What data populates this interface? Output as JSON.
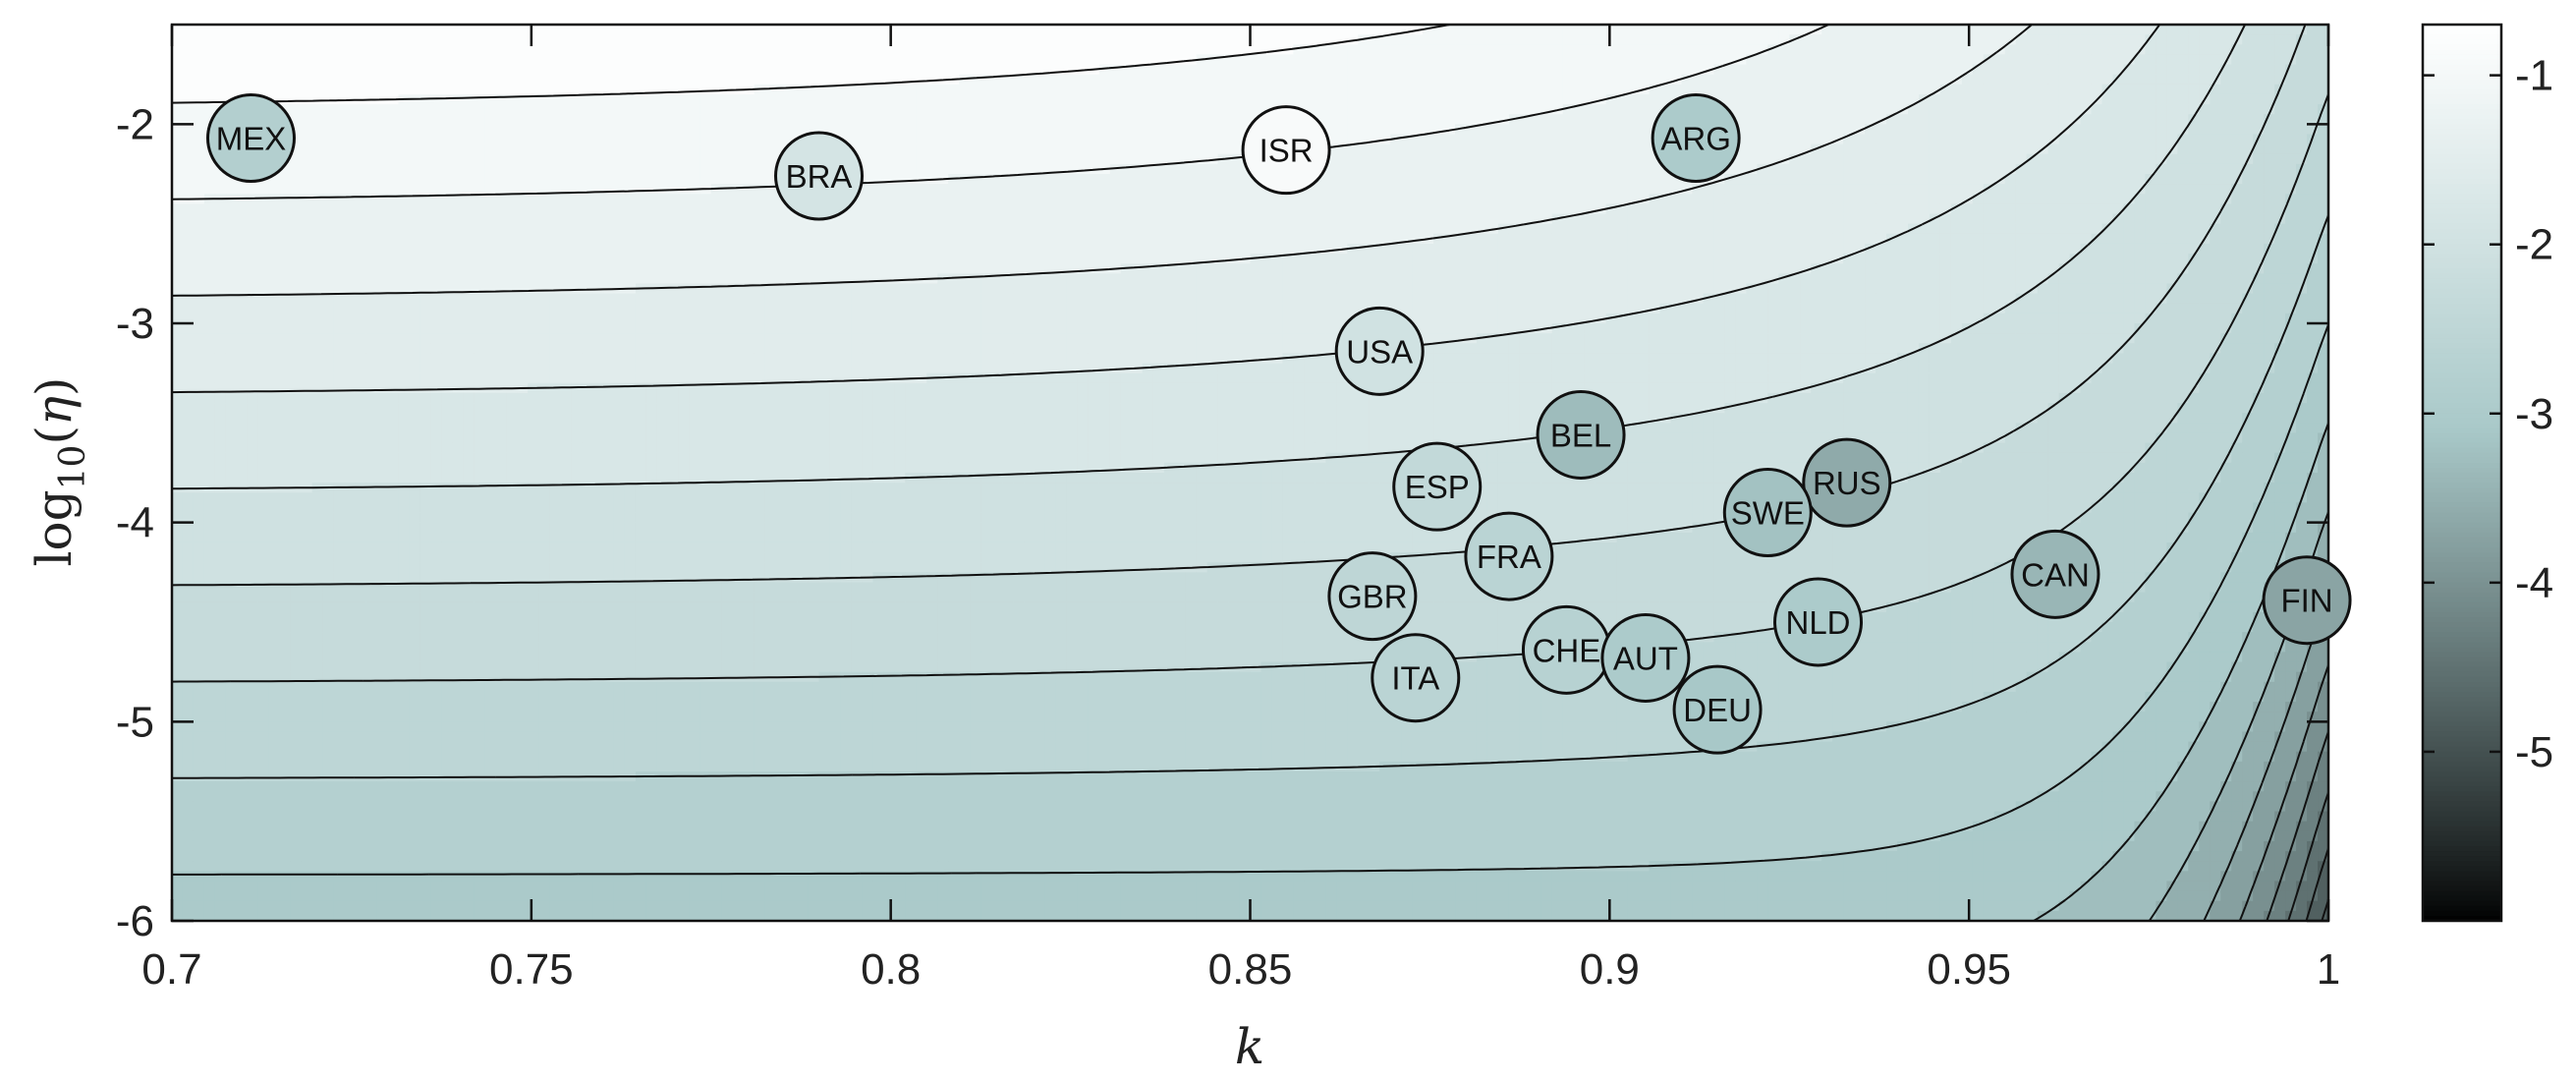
{
  "chart_data": {
    "type": "contour",
    "xlabel": "k",
    "ylabel_parts": [
      "log",
      "10",
      "(",
      "η",
      ")"
    ],
    "xlim": [
      0.7,
      1.0
    ],
    "ylim": [
      -6,
      -1.5
    ],
    "x_ticks": [
      0.7,
      0.75,
      0.8,
      0.85,
      0.9,
      0.95,
      1.0
    ],
    "x_tick_labels": [
      "0.7",
      "0.75",
      "0.8",
      "0.85",
      "0.9",
      "0.95",
      "1"
    ],
    "y_ticks": [
      -2,
      -3,
      -4,
      -5,
      -6
    ],
    "y_tick_labels": [
      "-2",
      "-3",
      "-4",
      "-5",
      "-6"
    ],
    "colorbar": {
      "range": [
        -6,
        -0.7
      ],
      "ticks": [
        -1,
        -2,
        -3,
        -4,
        -5
      ],
      "tick_labels": [
        "-1",
        "-2",
        "-3",
        "-4",
        "-5"
      ],
      "colormap": "bone",
      "low_color": "#000000",
      "mid_color": "#a9c9c9",
      "high_color": "#ffffff"
    },
    "contour_levels": [
      -0.9,
      -1.15,
      -1.4,
      -1.65,
      -1.9,
      -2.15,
      -2.4,
      -2.65,
      -2.9,
      -3.15,
      -3.4,
      -3.65,
      -3.9,
      -4.15,
      -4.4,
      -4.65,
      -4.9,
      -5.15,
      -5.4,
      -5.65
    ],
    "countries": [
      {
        "label": "MEX",
        "k": 0.711,
        "log_eta": -2.07,
        "value": -2.8
      },
      {
        "label": "BRA",
        "k": 0.79,
        "log_eta": -2.26,
        "value": -1.9
      },
      {
        "label": "ISR",
        "k": 0.855,
        "log_eta": -2.13,
        "value": -0.9
      },
      {
        "label": "ARG",
        "k": 0.912,
        "log_eta": -2.07,
        "value": -3.0
      },
      {
        "label": "USA",
        "k": 0.868,
        "log_eta": -3.14,
        "value": -2.0
      },
      {
        "label": "BEL",
        "k": 0.896,
        "log_eta": -3.56,
        "value": -3.3
      },
      {
        "label": "ESP",
        "k": 0.876,
        "log_eta": -3.82,
        "value": -2.4
      },
      {
        "label": "RUS",
        "k": 0.933,
        "log_eta": -3.8,
        "value": -3.6
      },
      {
        "label": "SWE",
        "k": 0.922,
        "log_eta": -3.95,
        "value": -3.2
      },
      {
        "label": "FRA",
        "k": 0.886,
        "log_eta": -4.17,
        "value": -2.6
      },
      {
        "label": "GBR",
        "k": 0.867,
        "log_eta": -4.37,
        "value": -2.5
      },
      {
        "label": "CAN",
        "k": 0.962,
        "log_eta": -4.26,
        "value": -3.4
      },
      {
        "label": "FIN",
        "k": 0.997,
        "log_eta": -4.39,
        "value": -3.7
      },
      {
        "label": "NLD",
        "k": 0.929,
        "log_eta": -4.5,
        "value": -3.0
      },
      {
        "label": "CHE",
        "k": 0.894,
        "log_eta": -4.64,
        "value": -2.7
      },
      {
        "label": "AUT",
        "k": 0.905,
        "log_eta": -4.68,
        "value": -3.0
      },
      {
        "label": "ITA",
        "k": 0.873,
        "log_eta": -4.78,
        "value": -2.6
      },
      {
        "label": "DEU",
        "k": 0.915,
        "log_eta": -4.94,
        "value": -3.1
      }
    ]
  }
}
